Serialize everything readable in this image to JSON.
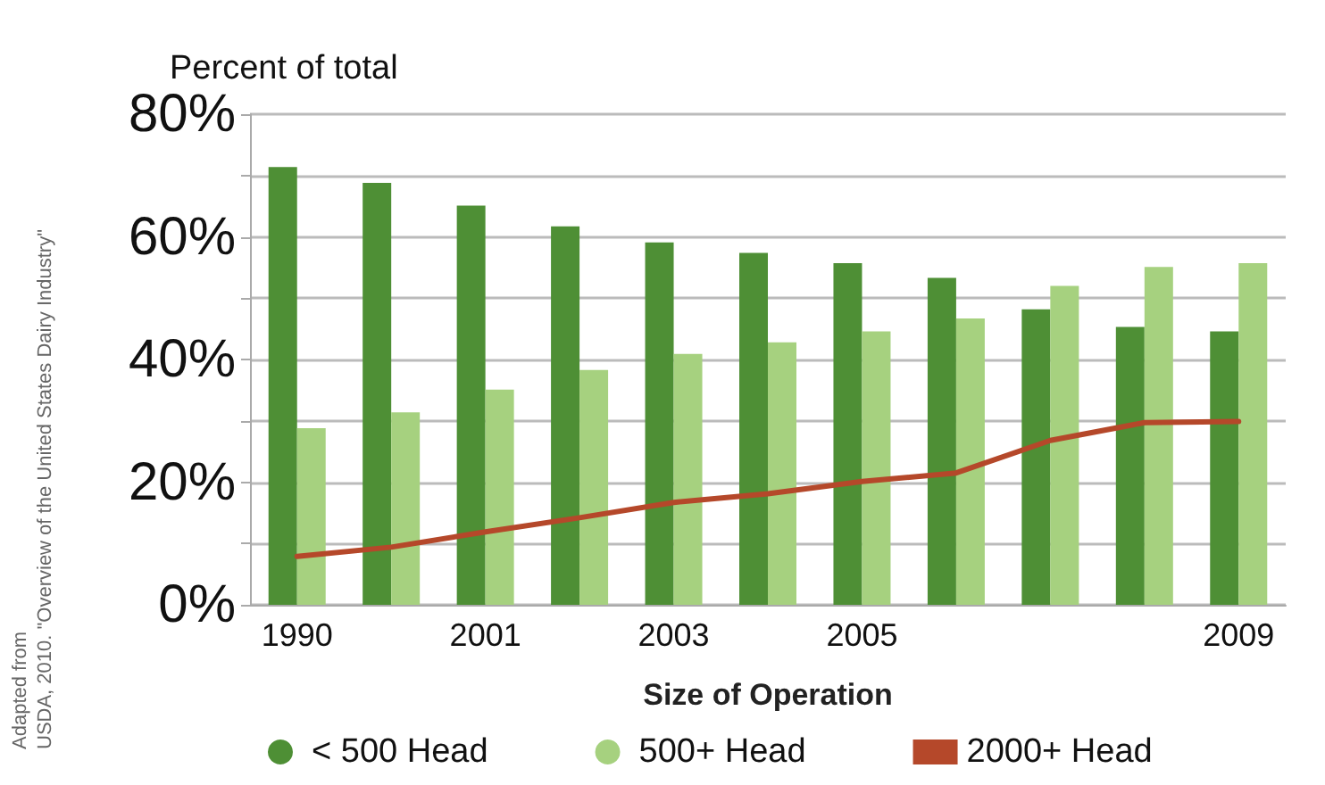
{
  "chart_data": {
    "type": "bar",
    "ylabel": "Percent of total",
    "xlabel": "Size of Operation",
    "categories": [
      "1990",
      null,
      "2001",
      null,
      "2003",
      null,
      "2005",
      null,
      null,
      null,
      "2009"
    ],
    "series": [
      {
        "name": "< 500 Head",
        "color": "#4e8f35",
        "values": [
          71.4,
          68.8,
          65.1,
          61.7,
          59.1,
          57.4,
          55.7,
          53.3,
          48.2,
          45.3,
          44.6
        ]
      },
      {
        "name": "500+ Head",
        "color": "#a6d17f",
        "values": [
          28.8,
          31.4,
          35.1,
          38.3,
          40.9,
          42.8,
          44.6,
          46.7,
          52.0,
          55.1,
          55.7
        ]
      },
      {
        "name": "2000+ Head",
        "type": "line",
        "color": "#b5482a",
        "values": [
          7.9,
          9.4,
          11.9,
          14.2,
          16.7,
          18.1,
          20.1,
          21.5,
          26.8,
          29.7,
          29.9
        ]
      }
    ],
    "ylim": [
      0,
      80
    ],
    "yticks": [
      {
        "value": 0,
        "label": "0%"
      },
      {
        "value": 10,
        "label": null
      },
      {
        "value": 20,
        "label": "20%"
      },
      {
        "value": 30,
        "label": null
      },
      {
        "value": 40,
        "label": "40%"
      },
      {
        "value": 50,
        "label": null
      },
      {
        "value": 60,
        "label": "60%"
      },
      {
        "value": 70,
        "label": null
      },
      {
        "value": 80,
        "label": "80%"
      }
    ],
    "grid": "y",
    "legend": "bottom",
    "marker": "none",
    "line_style": "solid",
    "annotations": [
      "Adapted from",
      "USDA, 2010. \"Overview of the United States Dairy Industry\""
    ]
  }
}
